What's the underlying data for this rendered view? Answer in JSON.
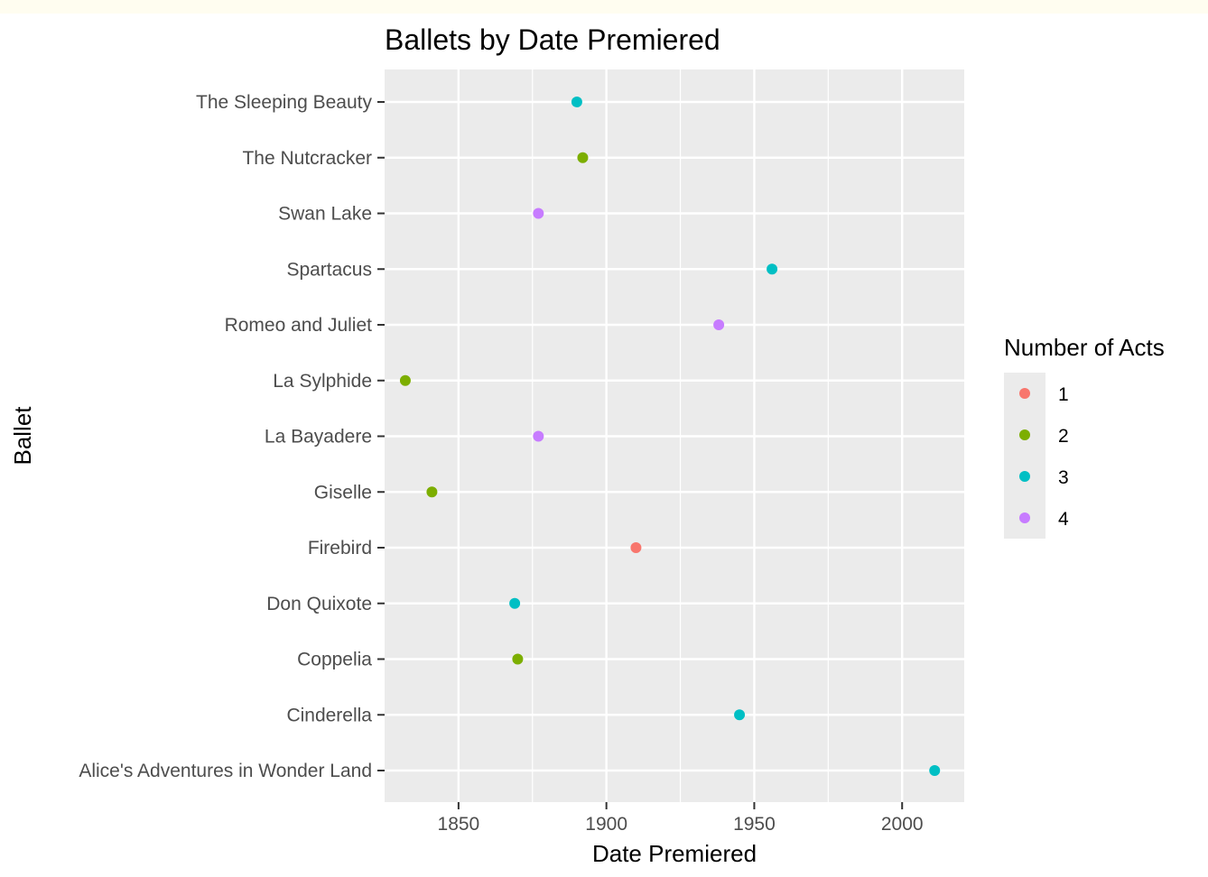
{
  "chart_data": {
    "type": "scatter",
    "title": "Ballets by Date Premiered",
    "xlabel": "Date Premiered",
    "ylabel": "Ballet",
    "xlim": [
      1825,
      2021
    ],
    "x_ticks": [
      1850,
      1900,
      1950,
      2000
    ],
    "categories": [
      "Alice's Adventures in Wonder Land",
      "Cinderella",
      "Coppelia",
      "Don Quixote",
      "Firebird",
      "Giselle",
      "La Bayadere",
      "La Sylphide",
      "Romeo and Juliet",
      "Spartacus",
      "Swan Lake",
      "The Nutcracker",
      "The Sleeping Beauty"
    ],
    "points": [
      {
        "ballet": "The Sleeping Beauty",
        "x": 1890,
        "acts": "3"
      },
      {
        "ballet": "The Nutcracker",
        "x": 1892,
        "acts": "2"
      },
      {
        "ballet": "Swan Lake",
        "x": 1877,
        "acts": "4"
      },
      {
        "ballet": "Spartacus",
        "x": 1956,
        "acts": "3"
      },
      {
        "ballet": "Romeo and Juliet",
        "x": 1938,
        "acts": "4"
      },
      {
        "ballet": "La Sylphide",
        "x": 1832,
        "acts": "2"
      },
      {
        "ballet": "La Bayadere",
        "x": 1877,
        "acts": "4"
      },
      {
        "ballet": "Giselle",
        "x": 1841,
        "acts": "2"
      },
      {
        "ballet": "Firebird",
        "x": 1910,
        "acts": "1"
      },
      {
        "ballet": "Don Quixote",
        "x": 1869,
        "acts": "3"
      },
      {
        "ballet": "Coppelia",
        "x": 1870,
        "acts": "2"
      },
      {
        "ballet": "Cinderella",
        "x": 1945,
        "acts": "3"
      },
      {
        "ballet": "Alice's Adventures in Wonder Land",
        "x": 2011,
        "acts": "3"
      }
    ],
    "legend": {
      "title": "Number of Acts",
      "placement": "right",
      "entries": [
        {
          "label": "1",
          "color": "#F8766D"
        },
        {
          "label": "2",
          "color": "#7CAE00"
        },
        {
          "label": "3",
          "color": "#00BFC4"
        },
        {
          "label": "4",
          "color": "#C77CFF"
        }
      ]
    },
    "grid": true,
    "panel_background": "#EBEBEB",
    "grid_color": "#FFFFFF"
  }
}
